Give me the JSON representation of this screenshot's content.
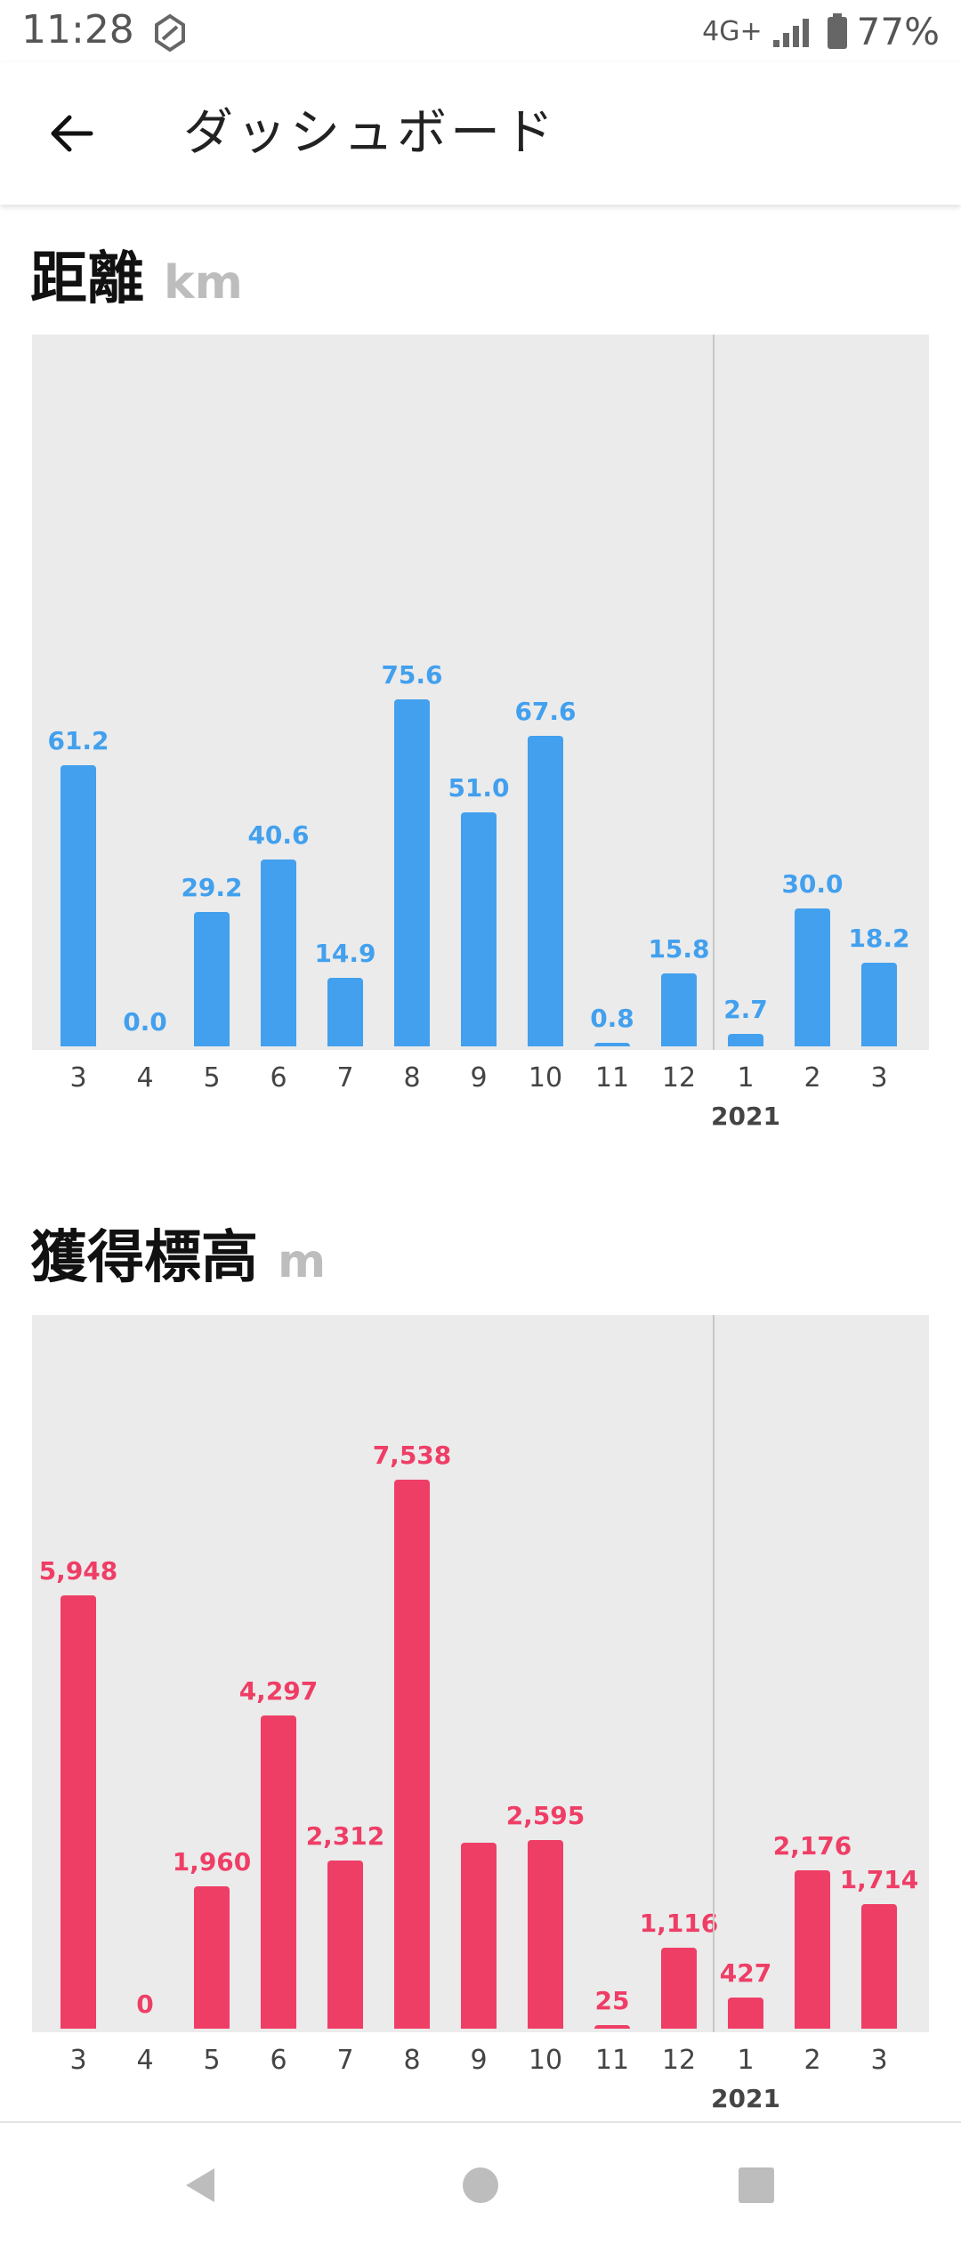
{
  "status_bar": {
    "time": "11:28",
    "network": "4G+",
    "battery": "77%"
  },
  "app_bar": {
    "title": "ダッシュボード",
    "back_icon": "arrow-back-icon"
  },
  "distance": {
    "title": "距離",
    "unit": "km",
    "color": "#42a0ee",
    "chart_data": {
      "type": "bar",
      "categories": [
        "3",
        "4",
        "5",
        "6",
        "7",
        "8",
        "9",
        "10",
        "11",
        "12",
        "1",
        "2",
        "3"
      ],
      "values": [
        61.2,
        0.0,
        29.2,
        40.6,
        14.9,
        75.6,
        51.0,
        67.6,
        0.8,
        15.8,
        2.7,
        30.0,
        18.2
      ],
      "value_labels": [
        "61.2",
        "0.0",
        "29.2",
        "40.6",
        "14.9",
        "75.6",
        "51.0",
        "67.6",
        "0.8",
        "15.8",
        "2.7",
        "30.0",
        "18.2"
      ],
      "year_marker": "2021",
      "ylim": [
        0,
        155
      ]
    }
  },
  "elevation": {
    "title": "獲得標高",
    "unit": "m",
    "color": "#ef3e66",
    "chart_data": {
      "type": "bar",
      "categories": [
        "3",
        "4",
        "5",
        "6",
        "7",
        "8",
        "9",
        "10",
        "11",
        "12",
        "1",
        "2",
        "3"
      ],
      "values": [
        5948,
        0,
        1960,
        4297,
        2312,
        7538,
        2556,
        2595,
        25,
        1116,
        427,
        2176,
        1714
      ],
      "value_labels": [
        "5,948",
        "0",
        "1,960",
        "4,297",
        "2,312",
        "7,538",
        "",
        "2,595",
        "25",
        "1,116",
        "427",
        "2,176",
        "1,714"
      ],
      "year_marker": "2021",
      "ylim": [
        0,
        9800
      ]
    }
  },
  "nav": {
    "back": "nav-back-icon",
    "home": "nav-home-icon",
    "recents": "nav-recents-icon"
  }
}
